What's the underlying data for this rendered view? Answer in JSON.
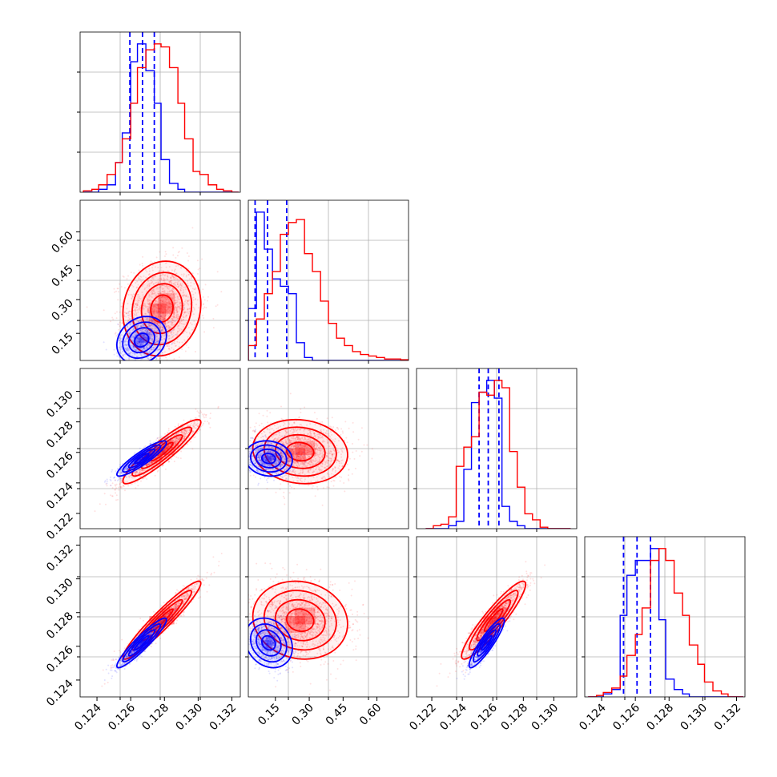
{
  "figure": {
    "type": "corner-plot",
    "colors": {
      "blue": "#0000ff",
      "red": "#ff0000",
      "grid": "#b0b0b0",
      "axis": "#000000"
    }
  },
  "chart_data": [
    {
      "panel": "hist-0",
      "type": "bar",
      "x_ticks": [],
      "y_ticks": [],
      "xlim": [
        0.123,
        0.1325
      ],
      "series": [
        {
          "color": "#0000ff",
          "edges": [
            0.1232,
            0.1237,
            0.1241,
            0.1246,
            0.1251,
            0.1255,
            0.126,
            0.1264,
            0.1269,
            0.1274,
            0.1278,
            0.1283,
            0.1288,
            0.1292,
            0.1297,
            0.1301,
            0.1306,
            0.1311,
            0.1315,
            0.132,
            0.1324
          ],
          "counts": [
            0,
            0,
            0.02,
            0.05,
            0.2,
            0.4,
            0.88,
            1.0,
            0.82,
            0.6,
            0.22,
            0.06,
            0.02,
            0,
            0,
            0,
            0,
            0,
            0,
            0
          ],
          "quantiles": [
            0.12595,
            0.1267,
            0.1274
          ]
        },
        {
          "color": "#ff0000",
          "edges": [
            0.1232,
            0.1237,
            0.1241,
            0.1246,
            0.1251,
            0.1255,
            0.126,
            0.1264,
            0.1269,
            0.1274,
            0.1278,
            0.1283,
            0.1288,
            0.1292,
            0.1297,
            0.1301,
            0.1306,
            0.1311,
            0.1315,
            0.132,
            0.1324
          ],
          "counts": [
            0.01,
            0.02,
            0.05,
            0.12,
            0.2,
            0.36,
            0.6,
            0.84,
            0.96,
            1.0,
            0.98,
            0.84,
            0.6,
            0.36,
            0.14,
            0.12,
            0.05,
            0.02,
            0.01,
            0
          ]
        }
      ]
    },
    {
      "panel": "hist-1",
      "type": "bar",
      "x_ticks": [],
      "y_ticks": [],
      "xlim": [
        0.03,
        0.74
      ],
      "series": [
        {
          "color": "#0000ff",
          "edges": [
            0.03,
            0.066,
            0.101,
            0.137,
            0.172,
            0.208,
            0.243,
            0.279,
            0.314,
            0.35,
            0.385,
            0.421,
            0.456,
            0.492,
            0.527,
            0.563,
            0.598,
            0.634,
            0.669,
            0.705,
            0.74
          ],
          "counts": [
            0.35,
            1.0,
            0.75,
            0.55,
            0.5,
            0.45,
            0.12,
            0.02,
            0,
            0,
            0,
            0,
            0,
            0,
            0,
            0,
            0,
            0,
            0,
            0
          ],
          "quantiles": [
            0.06,
            0.115,
            0.2
          ]
        },
        {
          "color": "#ff0000",
          "edges": [
            0.03,
            0.066,
            0.101,
            0.137,
            0.172,
            0.208,
            0.243,
            0.279,
            0.314,
            0.35,
            0.385,
            0.421,
            0.456,
            0.492,
            0.527,
            0.563,
            0.598,
            0.634,
            0.669,
            0.705,
            0.74
          ],
          "counts": [
            0.1,
            0.28,
            0.45,
            0.6,
            0.85,
            0.93,
            0.95,
            0.72,
            0.6,
            0.4,
            0.25,
            0.15,
            0.1,
            0.06,
            0.04,
            0.03,
            0.02,
            0.01,
            0.01,
            0.005
          ]
        }
      ]
    },
    {
      "panel": "hist-2",
      "type": "bar",
      "x_ticks": [],
      "y_ticks": [],
      "xlim": [
        0.121,
        0.1315
      ],
      "series": [
        {
          "color": "#0000ff",
          "edges": [
            0.1216,
            0.1221,
            0.1226,
            0.1231,
            0.1236,
            0.1241,
            0.1246,
            0.1251,
            0.1256,
            0.1261,
            0.1266,
            0.1271,
            0.1276,
            0.1281,
            0.1286,
            0.1291,
            0.1296,
            0.1301,
            0.1306,
            0.1311
          ],
          "counts": [
            0,
            0,
            0,
            0.02,
            0.05,
            0.4,
            0.85,
            0.92,
            1.0,
            0.88,
            0.15,
            0.05,
            0.02,
            0,
            0,
            0,
            0,
            0,
            0
          ],
          "quantiles": [
            0.1251,
            0.1257,
            0.1264
          ]
        },
        {
          "color": "#ff0000",
          "edges": [
            0.1216,
            0.1221,
            0.1226,
            0.1231,
            0.1236,
            0.1241,
            0.1246,
            0.1251,
            0.1256,
            0.1261,
            0.1266,
            0.1271,
            0.1276,
            0.1281,
            0.1286,
            0.1291,
            0.1296,
            0.1301,
            0.1306,
            0.1311
          ],
          "counts": [
            0,
            0.02,
            0.03,
            0.08,
            0.42,
            0.55,
            0.62,
            0.92,
            0.9,
            1.0,
            0.95,
            0.52,
            0.28,
            0.1,
            0.06,
            0.01,
            0,
            0,
            0
          ]
        }
      ]
    },
    {
      "panel": "hist-3",
      "type": "bar",
      "x_ticks": [
        "0.124",
        "0.126",
        "0.128",
        "0.130",
        "0.132"
      ],
      "x_tick_values": [
        0.124,
        0.126,
        0.128,
        0.13,
        0.132
      ],
      "y_ticks": [],
      "xlim": [
        0.123,
        0.1325
      ],
      "series": [
        {
          "color": "#0000ff",
          "edges": [
            0.1232,
            0.1237,
            0.1241,
            0.1246,
            0.1251,
            0.1255,
            0.126,
            0.1264,
            0.1269,
            0.1274,
            0.1278,
            0.1283,
            0.1288,
            0.1292,
            0.1297,
            0.1301,
            0.1306,
            0.1311,
            0.1315,
            0.132,
            0.1324
          ],
          "counts": [
            0,
            0,
            0.02,
            0.05,
            0.55,
            0.82,
            0.92,
            0.92,
            1.0,
            0.52,
            0.12,
            0.05,
            0.02,
            0,
            0,
            0,
            0,
            0,
            0,
            0
          ],
          "quantiles": [
            0.1253,
            0.1261,
            0.1269
          ]
        },
        {
          "color": "#ff0000",
          "edges": [
            0.1232,
            0.1237,
            0.1241,
            0.1246,
            0.1251,
            0.1255,
            0.126,
            0.1264,
            0.1269,
            0.1274,
            0.1278,
            0.1283,
            0.1288,
            0.1292,
            0.1297,
            0.1301,
            0.1306,
            0.1311,
            0.1315,
            0.132,
            0.1324
          ],
          "counts": [
            0,
            0.01,
            0.03,
            0.06,
            0.14,
            0.28,
            0.42,
            0.6,
            0.92,
            1.0,
            0.92,
            0.7,
            0.55,
            0.35,
            0.22,
            0.1,
            0.04,
            0.02,
            0,
            0
          ]
        }
      ]
    },
    {
      "panel": "scatter-1-0",
      "type": "scatter",
      "x_ticks": [],
      "y_ticks": [
        "0.15",
        "0.30",
        "0.45",
        "0.60"
      ],
      "y_tick_values": [
        0.15,
        0.3,
        0.45,
        0.6
      ],
      "xlim": [
        0.123,
        0.1325
      ],
      "ylim": [
        0.03,
        0.74
      ],
      "series": [
        {
          "color": "#ff0000",
          "mean": [
            0.12785,
            0.26
          ],
          "sd": [
            0.0011,
            0.1
          ],
          "corr": 0.1,
          "n": 1500
        },
        {
          "color": "#0000ff",
          "mean": [
            0.12665,
            0.12
          ],
          "sd": [
            0.0007,
            0.05
          ],
          "corr": 0.2,
          "n": 900
        }
      ]
    },
    {
      "panel": "scatter-2-0",
      "type": "scatter",
      "x_ticks": [],
      "y_ticks": [
        "0.122",
        "0.124",
        "0.126",
        "0.128",
        "0.130"
      ],
      "y_tick_values": [
        0.122,
        0.124,
        0.126,
        0.128,
        0.13
      ],
      "xlim": [
        0.123,
        0.1325
      ],
      "ylim": [
        0.121,
        0.1315
      ],
      "series": [
        {
          "color": "#ff0000",
          "mean": [
            0.12785,
            0.12605
          ],
          "sd": [
            0.0011,
            0.001
          ],
          "corr": 0.92,
          "n": 1500
        },
        {
          "color": "#0000ff",
          "mean": [
            0.12665,
            0.1256
          ],
          "sd": [
            0.0007,
            0.00055
          ],
          "corr": 0.9,
          "n": 900
        }
      ]
    },
    {
      "panel": "scatter-2-1",
      "type": "scatter",
      "x_ticks": [],
      "y_ticks": [],
      "xlim": [
        0.03,
        0.74
      ],
      "ylim": [
        0.121,
        0.1315
      ],
      "series": [
        {
          "color": "#ff0000",
          "mean": [
            0.26,
            0.12605
          ],
          "sd": [
            0.1,
            0.001
          ],
          "corr": -0.1,
          "n": 1500
        },
        {
          "color": "#0000ff",
          "mean": [
            0.12,
            0.1256
          ],
          "sd": [
            0.05,
            0.00055
          ],
          "corr": -0.1,
          "n": 900
        }
      ]
    },
    {
      "panel": "scatter-3-0",
      "type": "scatter",
      "x_ticks": [
        "0.124",
        "0.126",
        "0.128",
        "0.130",
        "0.132"
      ],
      "x_tick_values": [
        0.124,
        0.126,
        0.128,
        0.13,
        0.132
      ],
      "y_ticks": [
        "0.124",
        "0.126",
        "0.128",
        "0.130",
        "0.132"
      ],
      "y_tick_values": [
        0.124,
        0.126,
        0.128,
        0.13,
        0.132
      ],
      "xlim": [
        0.123,
        0.1325
      ],
      "ylim": [
        0.123,
        0.1325
      ],
      "series": [
        {
          "color": "#ff0000",
          "mean": [
            0.12785,
            0.12755
          ],
          "sd": [
            0.0011,
            0.0011
          ],
          "corr": 0.95,
          "n": 1500
        },
        {
          "color": "#0000ff",
          "mean": [
            0.12665,
            0.1262
          ],
          "sd": [
            0.0007,
            0.0007
          ],
          "corr": 0.93,
          "n": 900
        }
      ]
    },
    {
      "panel": "scatter-3-1",
      "type": "scatter",
      "x_ticks": [
        "0.15",
        "0.30",
        "0.45",
        "0.60"
      ],
      "x_tick_values": [
        0.15,
        0.3,
        0.45,
        0.6
      ],
      "y_ticks": [],
      "xlim": [
        0.03,
        0.74
      ],
      "ylim": [
        0.123,
        0.1325
      ],
      "series": [
        {
          "color": "#ff0000",
          "mean": [
            0.26,
            0.12755
          ],
          "sd": [
            0.1,
            0.0011
          ],
          "corr": -0.1,
          "n": 1500
        },
        {
          "color": "#0000ff",
          "mean": [
            0.12,
            0.1262
          ],
          "sd": [
            0.05,
            0.0007
          ],
          "corr": -0.2,
          "n": 900
        }
      ]
    },
    {
      "panel": "scatter-3-2",
      "type": "scatter",
      "x_ticks": [
        "0.122",
        "0.124",
        "0.126",
        "0.128",
        "0.130"
      ],
      "x_tick_values": [
        0.122,
        0.124,
        0.126,
        0.128,
        0.13
      ],
      "y_ticks": [],
      "xlim": [
        0.121,
        0.1315
      ],
      "ylim": [
        0.123,
        0.1325
      ],
      "series": [
        {
          "color": "#ff0000",
          "mean": [
            0.12605,
            0.12755
          ],
          "sd": [
            0.001,
            0.0011
          ],
          "corr": 0.92,
          "n": 1500
        },
        {
          "color": "#0000ff",
          "mean": [
            0.1256,
            0.1262
          ],
          "sd": [
            0.00055,
            0.0007
          ],
          "corr": 0.9,
          "n": 900
        }
      ]
    }
  ]
}
